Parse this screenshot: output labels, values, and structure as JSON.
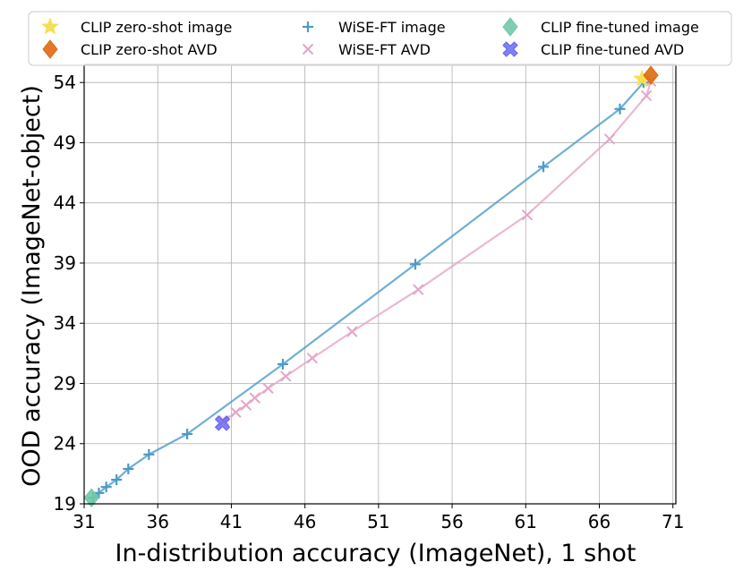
{
  "chart_data": {
    "type": "line",
    "title": "",
    "xlabel": "In-distribution accuracy (ImageNet), 1 shot",
    "ylabel": "OOD accuracy (ImageNet-object)",
    "xlim": [
      31,
      71.2
    ],
    "ylim": [
      19,
      55.5
    ],
    "xticks": [
      31,
      36,
      41,
      46,
      51,
      56,
      61,
      66,
      71
    ],
    "yticks": [
      19,
      24,
      29,
      34,
      39,
      44,
      49,
      54
    ],
    "grid": true,
    "legend_position": "top",
    "series": [
      {
        "name": "WiSE-FT image",
        "kind": "line+plus",
        "color": "#4c9bc8",
        "x": [
          31.6,
          32.0,
          32.5,
          33.2,
          34.0,
          35.4,
          38.0,
          44.5,
          53.5,
          62.2,
          67.4,
          69.0,
          69.1
        ],
        "y": [
          19.5,
          19.9,
          20.4,
          21.0,
          21.9,
          23.1,
          24.8,
          30.6,
          38.9,
          47.0,
          51.8,
          54.0,
          54.3
        ]
      },
      {
        "name": "WiSE-FT AVD",
        "kind": "line+x",
        "color": "#e3a6c8",
        "x": [
          40.5,
          41.3,
          42.0,
          42.6,
          43.5,
          44.7,
          46.5,
          49.2,
          53.7,
          61.1,
          66.7,
          69.2,
          69.5
        ],
        "y": [
          25.9,
          26.6,
          27.2,
          27.8,
          28.6,
          29.6,
          31.1,
          33.3,
          36.8,
          43.0,
          49.3,
          52.9,
          54.1
        ]
      },
      {
        "name": "CLIP zero-shot image",
        "kind": "star",
        "color": "#f5e050",
        "x": [
          68.9
        ],
        "y": [
          54.3
        ]
      },
      {
        "name": "CLIP zero-shot AVD",
        "kind": "diamond",
        "color": "#e06a10",
        "x": [
          69.5
        ],
        "y": [
          54.6
        ]
      },
      {
        "name": "CLIP fine-tuned image",
        "kind": "diamond",
        "color": "#72c8a8",
        "x": [
          31.5
        ],
        "y": [
          19.5
        ]
      },
      {
        "name": "CLIP fine-tuned AVD",
        "kind": "xfat",
        "color": "#6262f2",
        "x": [
          40.4
        ],
        "y": [
          25.7
        ]
      }
    ],
    "legend": [
      {
        "label": "CLIP zero-shot image",
        "marker": "star",
        "color": "#f5e050"
      },
      {
        "label": "WiSE-FT image",
        "marker": "plus",
        "color": "#4c9bc8"
      },
      {
        "label": "CLIP fine-tuned image",
        "marker": "diamond",
        "color": "#72c8a8"
      },
      {
        "label": "CLIP zero-shot AVD",
        "marker": "diamond",
        "color": "#e06a10"
      },
      {
        "label": "WiSE-FT AVD",
        "marker": "x",
        "color": "#e3a6c8"
      },
      {
        "label": "CLIP fine-tuned AVD",
        "marker": "xfat",
        "color": "#6262f2"
      }
    ]
  }
}
